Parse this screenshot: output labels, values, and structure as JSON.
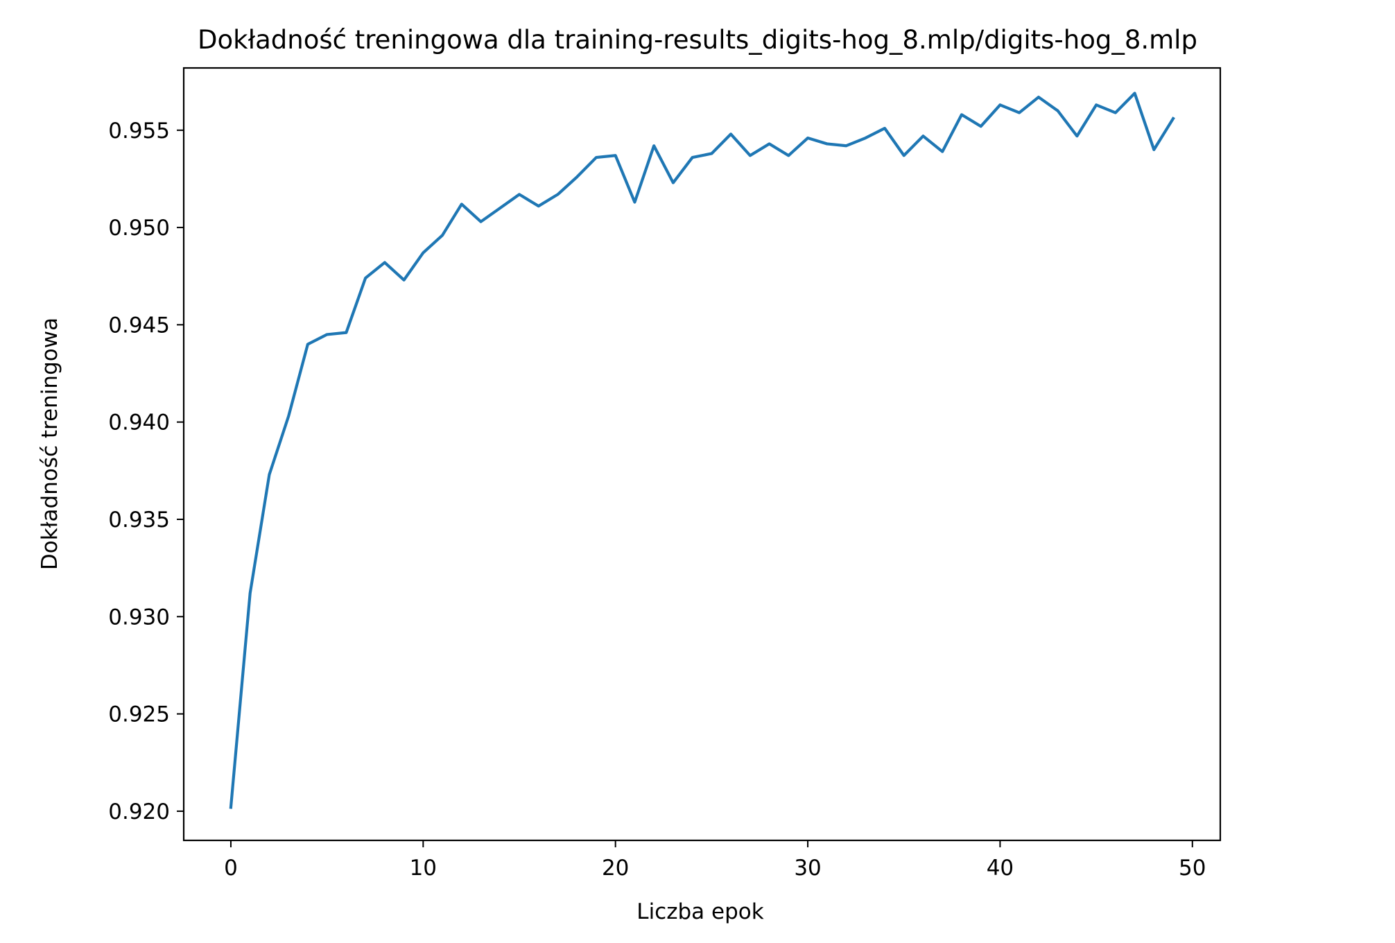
{
  "chart_data": {
    "type": "line",
    "title": "Dokładność treningowa dla training-results_digits-hog_8.mlp/digits-hog_8.mlp",
    "xlabel": "Liczba epok",
    "ylabel": "Dokładność treningowa",
    "xlim": [
      -2.45,
      51.45
    ],
    "ylim": [
      0.9185,
      0.9582
    ],
    "xticks": [
      0,
      10,
      20,
      30,
      40,
      50
    ],
    "xtick_labels": [
      "0",
      "10",
      "20",
      "30",
      "40",
      "50"
    ],
    "yticks": [
      0.92,
      0.925,
      0.93,
      0.935,
      0.94,
      0.945,
      0.95,
      0.955
    ],
    "ytick_labels": [
      "0.920",
      "0.925",
      "0.930",
      "0.935",
      "0.940",
      "0.945",
      "0.950",
      "0.955"
    ],
    "grid": false,
    "series": [
      {
        "color": "#1f77b4",
        "x": [
          0,
          1,
          2,
          3,
          4,
          5,
          6,
          7,
          8,
          9,
          10,
          11,
          12,
          13,
          14,
          15,
          16,
          17,
          18,
          19,
          20,
          21,
          22,
          23,
          24,
          25,
          26,
          27,
          28,
          29,
          30,
          31,
          32,
          33,
          34,
          35,
          36,
          37,
          38,
          39,
          40,
          41,
          42,
          43,
          44,
          45,
          46,
          47,
          48,
          49
        ],
        "y": [
          0.9202,
          0.9312,
          0.9373,
          0.9403,
          0.944,
          0.9445,
          0.9446,
          0.9474,
          0.9482,
          0.9473,
          0.9487,
          0.9496,
          0.9512,
          0.9503,
          0.951,
          0.9517,
          0.9511,
          0.9517,
          0.9526,
          0.9536,
          0.9537,
          0.9513,
          0.9542,
          0.9523,
          0.9536,
          0.9538,
          0.9548,
          0.9537,
          0.9543,
          0.9537,
          0.9546,
          0.9543,
          0.9542,
          0.9546,
          0.9551,
          0.9537,
          0.9547,
          0.9539,
          0.9558,
          0.9552,
          0.9563,
          0.9559,
          0.9567,
          0.956,
          0.9547,
          0.9563,
          0.9559,
          0.9569,
          0.954,
          0.9556
        ]
      }
    ]
  }
}
